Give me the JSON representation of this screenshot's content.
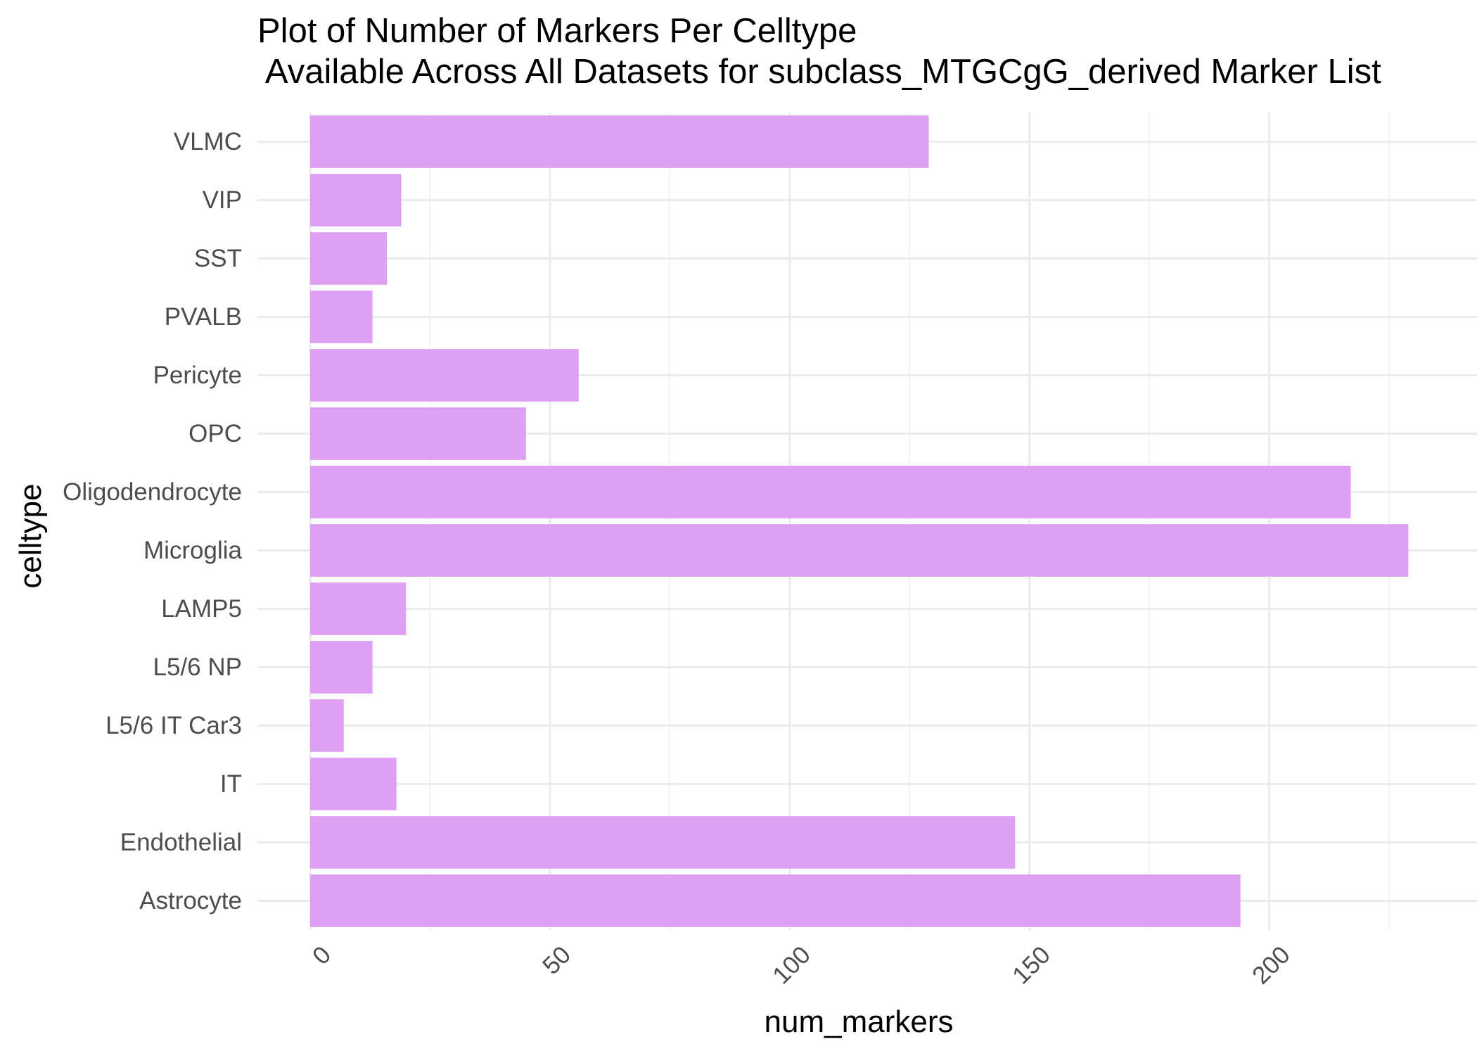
{
  "chart_data": {
    "type": "bar",
    "orientation": "horizontal",
    "title_lines": [
      "Plot of Number of Markers Per Celltype",
      " Available Across All Datasets for subclass_MTGCgG_derived Marker List"
    ],
    "xlabel": "num_markers",
    "ylabel": "celltype",
    "categories": [
      "Astrocyte",
      "Endothelial",
      "IT",
      "L5/6 IT Car3",
      "L5/6 NP",
      "LAMP5",
      "Microglia",
      "Oligodendrocyte",
      "OPC",
      "Pericyte",
      "PVALB",
      "SST",
      "VIP",
      "VLMC"
    ],
    "values": [
      194,
      147,
      18,
      7,
      13,
      20,
      229,
      217,
      45,
      56,
      13,
      16,
      19,
      129
    ],
    "xlim": [
      0,
      237
    ],
    "x_ticks": [
      "0",
      "50",
      "100",
      "150",
      "200"
    ],
    "bar_color": "#DDA0F2",
    "grid": true,
    "legend": "none"
  }
}
